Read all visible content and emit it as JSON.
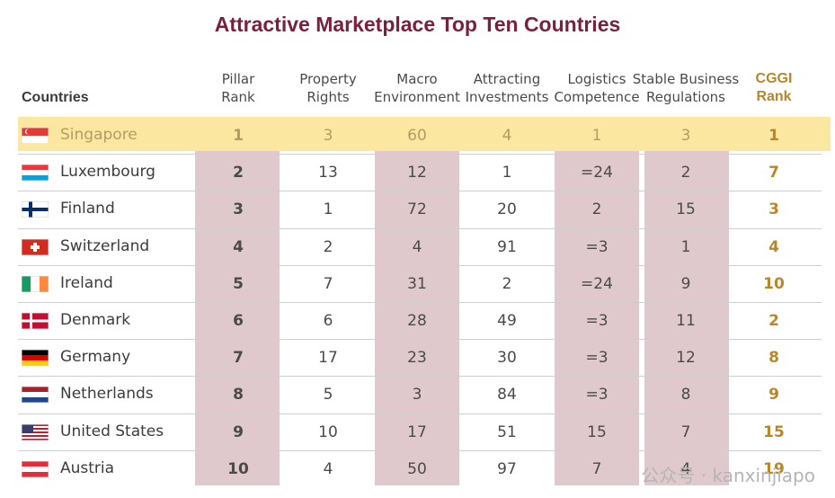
{
  "title": "Attractive Marketplace Top Ten Countries",
  "header": {
    "countries": "Countries",
    "columns": [
      {
        "l1": "Pillar",
        "l2": "Rank"
      },
      {
        "l1": "Property",
        "l2": "Rights"
      },
      {
        "l1": "Macro",
        "l2": "Environment"
      },
      {
        "l1": "Attracting",
        "l2": "Investments"
      },
      {
        "l1": "Logistics",
        "l2": "Competence"
      },
      {
        "l1": "Stable Business",
        "l2": "Regulations"
      },
      {
        "l1": "CGGI",
        "l2": "Rank"
      }
    ]
  },
  "colors": {
    "title": "#7a1f3d",
    "band": "#dfc9cc",
    "highlight": "#fbe7a0",
    "cggi": "#b8862b"
  },
  "watermark": "公众号 · kanxinjiapo",
  "chart_data": {
    "type": "table",
    "title": "Attractive Marketplace Top Ten Countries",
    "columns": [
      "Countries",
      "Pillar Rank",
      "Property Rights",
      "Macro Environment",
      "Attracting Investments",
      "Logistics Competence",
      "Stable Business Regulations",
      "CGGI Rank"
    ],
    "rows": [
      {
        "country": "Singapore",
        "flag": "singapore",
        "vals": [
          "1",
          "3",
          "60",
          "4",
          "1",
          "3",
          "1"
        ],
        "highlight": true
      },
      {
        "country": "Luxembourg",
        "flag": "luxembourg",
        "vals": [
          "2",
          "13",
          "12",
          "1",
          "=24",
          "2",
          "7"
        ]
      },
      {
        "country": "Finland",
        "flag": "finland",
        "vals": [
          "3",
          "1",
          "72",
          "20",
          "2",
          "15",
          "3"
        ]
      },
      {
        "country": "Switzerland",
        "flag": "switzerland",
        "vals": [
          "4",
          "2",
          "4",
          "91",
          "=3",
          "1",
          "4"
        ]
      },
      {
        "country": "Ireland",
        "flag": "ireland",
        "vals": [
          "5",
          "7",
          "31",
          "2",
          "=24",
          "9",
          "10"
        ]
      },
      {
        "country": "Denmark",
        "flag": "denmark",
        "vals": [
          "6",
          "6",
          "28",
          "49",
          "=3",
          "11",
          "2"
        ]
      },
      {
        "country": "Germany",
        "flag": "germany",
        "vals": [
          "7",
          "17",
          "23",
          "30",
          "=3",
          "12",
          "8"
        ]
      },
      {
        "country": "Netherlands",
        "flag": "netherlands",
        "vals": [
          "8",
          "5",
          "3",
          "84",
          "=3",
          "8",
          "9"
        ]
      },
      {
        "country": "United States",
        "flag": "usa",
        "vals": [
          "9",
          "10",
          "17",
          "51",
          "15",
          "7",
          "15"
        ]
      },
      {
        "country": "Austria",
        "flag": "austria",
        "vals": [
          "10",
          "4",
          "50",
          "97",
          "7",
          "4",
          "19"
        ]
      }
    ]
  }
}
